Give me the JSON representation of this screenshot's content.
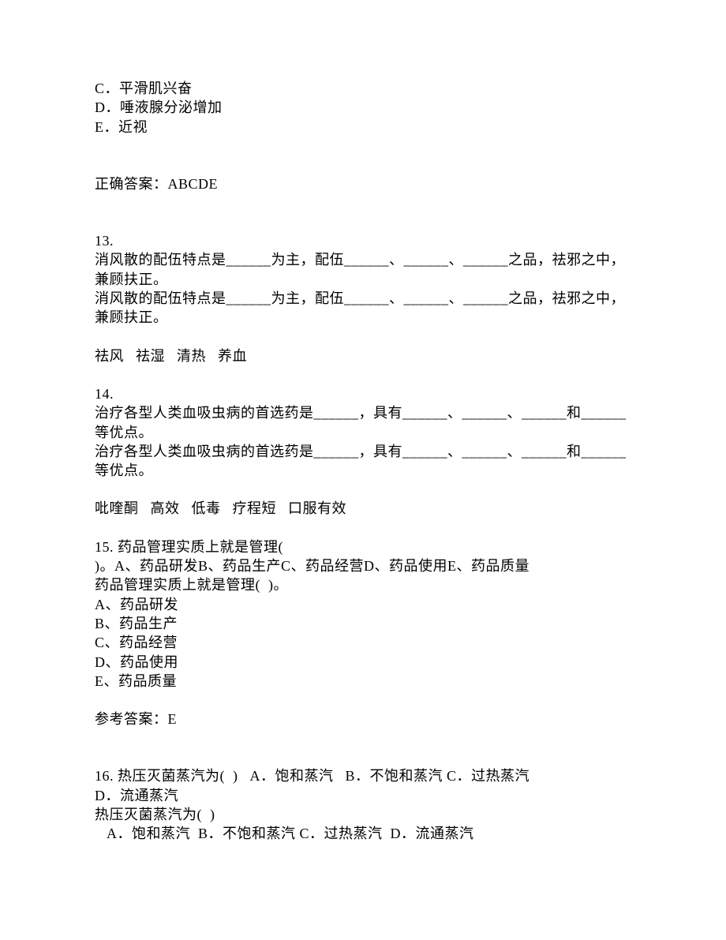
{
  "q12": {
    "opts": [
      "C．平滑肌兴奋",
      "D．唾液腺分泌增加",
      "E．近视"
    ],
    "ans_label": "正确答案：ABCDE"
  },
  "q13": {
    "num": "13.",
    "l1": "消风散的配伍特点是______为主，配伍______、______、______之品，祛邪之中，",
    "l2": "兼顾扶正。",
    "l3": "消风散的配伍特点是______为主，配伍______、______、______之品，祛邪之中，",
    "l4": "兼顾扶正。",
    "ans": "祛风   祛湿   清热   养血"
  },
  "q14": {
    "num": "14.",
    "l1": "治疗各型人类血吸虫病的首选药是______，具有______、______、______和______",
    "l2": "等优点。",
    "l3": "治疗各型人类血吸虫病的首选药是______，具有______、______、______和______",
    "l4": "等优点。",
    "ans": "吡喹酮   高效   低毒   疗程短   口服有效"
  },
  "q15": {
    "l1": "15. 药品管理实质上就是管理(",
    "l2": ")。A、药品研发B、药品生产C、药品经营D、药品使用E、药品质量",
    "l3": "药品管理实质上就是管理(  )。",
    "opts": [
      "A、药品研发",
      "B、药品生产",
      "C、药品经营",
      "D、药品使用",
      "E、药品质量"
    ],
    "ans": "参考答案：E"
  },
  "q16": {
    "l1": "16. 热压灭菌蒸汽为(  )   A．饱和蒸汽   B．不饱和蒸汽 C．过热蒸汽",
    "l2": "D．流通蒸汽",
    "l3": "热压灭菌蒸汽为(  )",
    "l4": "   A．饱和蒸汽  B．不饱和蒸汽 C．过热蒸汽  D．流通蒸汽"
  }
}
